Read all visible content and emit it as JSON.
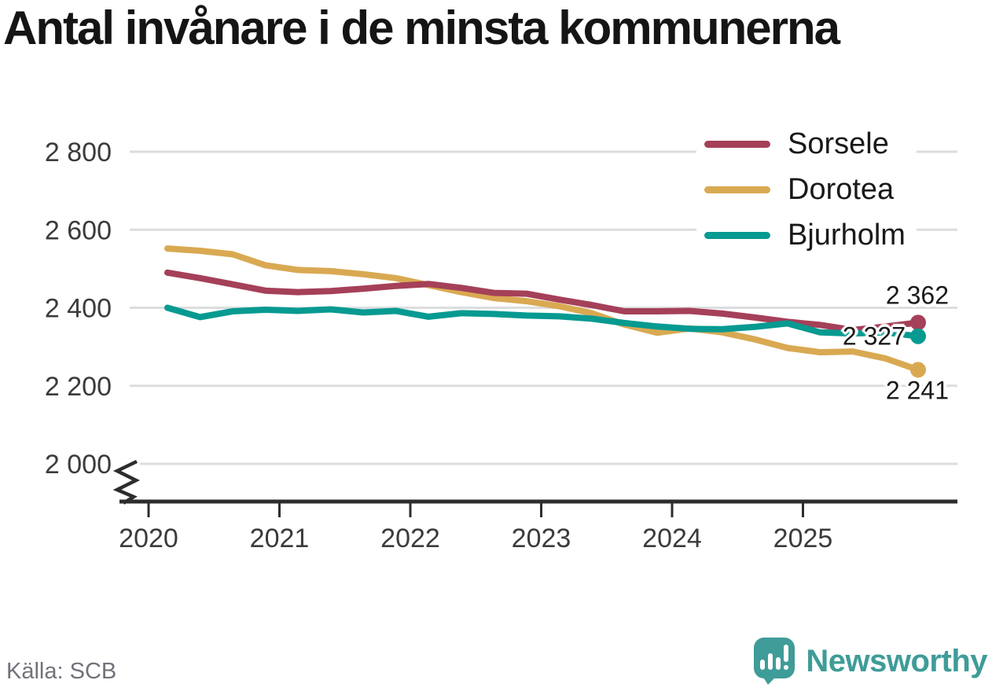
{
  "title": "Antal invånare i de minsta kommunerna",
  "source": "Källa: SCB",
  "brand": {
    "name": "Newsworthy",
    "color": "#3f9c98"
  },
  "chart_data": {
    "type": "line",
    "title": "Antal invånare i de minsta kommunerna",
    "xlabel": "",
    "ylabel": "",
    "x": [
      "2020-Q1",
      "2020-Q2",
      "2020-Q3",
      "2020-Q4",
      "2021-Q1",
      "2021-Q2",
      "2021-Q3",
      "2021-Q4",
      "2022-Q1",
      "2022-Q2",
      "2022-Q3",
      "2022-Q4",
      "2023-Q1",
      "2023-Q2",
      "2023-Q3",
      "2023-Q4",
      "2024-Q1",
      "2024-Q2",
      "2024-Q3",
      "2024-Q4",
      "2025-Q1",
      "2025-Q2",
      "2025-Q3",
      "2025-Q4"
    ],
    "x_tick_labels": [
      "2020",
      "2021",
      "2022",
      "2023",
      "2024",
      "2025"
    ],
    "y_ticks": [
      2800,
      2600,
      2400,
      2200,
      2000
    ],
    "y_tick_labels": [
      "2 800",
      "2 600",
      "2 400",
      "2 200",
      "2 000"
    ],
    "ylim_shown": [
      2000,
      2800
    ],
    "axis_break_at_bottom": true,
    "grid": "horizontal",
    "legend_position": "top-right",
    "series": [
      {
        "name": "Sorsele",
        "color": "#a54059",
        "end_label": "2 362",
        "values": [
          2490,
          2476,
          2460,
          2444,
          2440,
          2443,
          2449,
          2456,
          2461,
          2451,
          2438,
          2436,
          2421,
          2407,
          2391,
          2391,
          2392,
          2385,
          2375,
          2364,
          2356,
          2343,
          2352,
          2362
        ]
      },
      {
        "name": "Dorotea",
        "color": "#d9a952",
        "end_label": "2 241",
        "values": [
          2552,
          2546,
          2537,
          2509,
          2497,
          2494,
          2486,
          2476,
          2458,
          2440,
          2425,
          2417,
          2404,
          2386,
          2357,
          2336,
          2347,
          2337,
          2319,
          2297,
          2286,
          2288,
          2270,
          2241
        ]
      },
      {
        "name": "Bjurholm",
        "color": "#079a91",
        "end_label": "2 327",
        "values": [
          2400,
          2376,
          2391,
          2395,
          2392,
          2396,
          2388,
          2392,
          2377,
          2386,
          2384,
          2380,
          2378,
          2372,
          2361,
          2352,
          2346,
          2345,
          2351,
          2360,
          2337,
          2334,
          2337,
          2327
        ]
      }
    ]
  }
}
